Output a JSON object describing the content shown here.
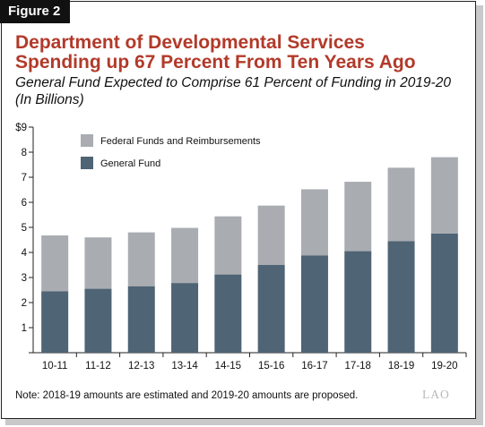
{
  "figure_label": "Figure 2",
  "title_line1": "Department of Developmental Services",
  "title_line2": "Spending up 67 Percent From Ten Years Ago",
  "subtitle_line1": "General Fund Expected to Comprise 61 Percent of Funding in 2019-20",
  "subtitle_line2": "(In Billions)",
  "note": "Note: 2018-19 amounts are estimated and 2019-20 amounts are proposed.",
  "logo": "LAO",
  "colors": {
    "title": "#b23a2a",
    "general_fund": "#4f6474",
    "federal_funds": "#a9adb2"
  },
  "chart_data": {
    "type": "bar",
    "stacked": true,
    "categories": [
      "10-11",
      "11-12",
      "12-13",
      "13-14",
      "14-15",
      "15-16",
      "16-17",
      "17-18",
      "18-19",
      "19-20"
    ],
    "series": [
      {
        "name": "General Fund",
        "values": [
          2.45,
          2.55,
          2.65,
          2.78,
          3.12,
          3.5,
          3.88,
          4.05,
          4.45,
          4.75
        ]
      },
      {
        "name": "Federal Funds and Reimbursements",
        "values": [
          2.23,
          2.05,
          2.15,
          2.2,
          2.32,
          2.37,
          2.64,
          2.77,
          2.93,
          3.05
        ]
      }
    ],
    "ylim": [
      0,
      9
    ],
    "yticks": [
      "",
      "1",
      "2",
      "3",
      "4",
      "5",
      "6",
      "7",
      "8",
      "$9"
    ],
    "legend": [
      "Federal Funds and Reimbursements",
      "General Fund"
    ],
    "legend_position": "top-left",
    "grid": false
  }
}
